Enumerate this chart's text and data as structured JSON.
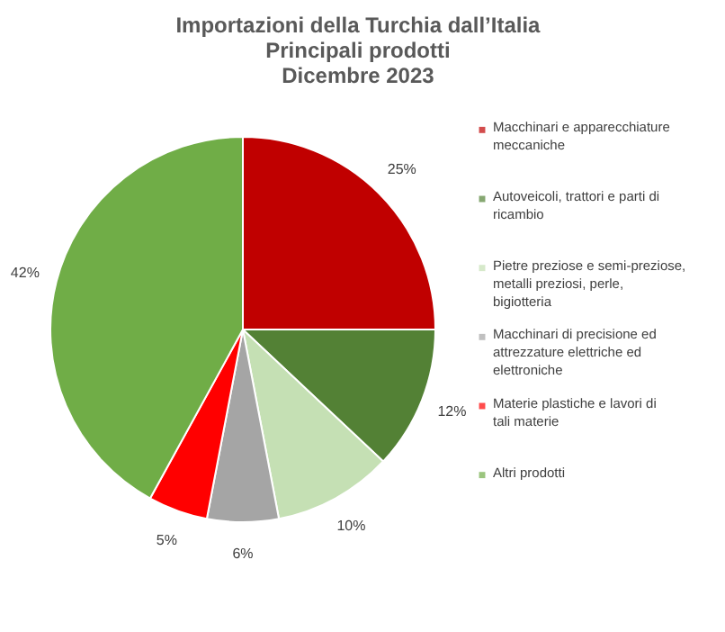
{
  "chart_data": {
    "type": "pie",
    "title": [
      "Importazioni della Turchia dall’Italia",
      "Principali prodotti",
      "Dicembre 2023"
    ],
    "categories": [
      "Macchinari e apparecchiature meccaniche",
      "Autoveicoli, trattori e parti di ricambio",
      "Pietre preziose e semi-preziose, metalli preziosi, perle, bigiotteria",
      "Macchinari di precisione ed attrezzature elettriche ed elettroniche",
      "Materie plastiche e lavori di tali materie",
      "Altri prodotti"
    ],
    "values": [
      25,
      12,
      10,
      6,
      5,
      42
    ],
    "colors": [
      "#c00000",
      "#538135",
      "#c5e0b4",
      "#a5a5a5",
      "#ff0000",
      "#70ad47"
    ],
    "value_labels": [
      "25%",
      "12%",
      "10%",
      "6%",
      "5%",
      "42%"
    ],
    "legend": "right"
  }
}
